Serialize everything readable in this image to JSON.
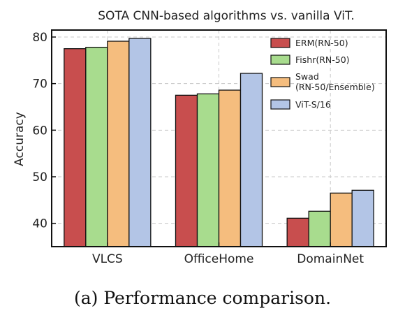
{
  "chart_data": {
    "type": "bar",
    "title": "SOTA CNN-based algorithms vs. vanilla ViT.",
    "xlabel": "",
    "ylabel": "Accuracy",
    "ylim": [
      35,
      81.5
    ],
    "yticks": [
      "40",
      "50",
      "60",
      "70",
      "80"
    ],
    "categories": [
      "VLCS",
      "OfficeHome",
      "DomainNet"
    ],
    "grid": true,
    "legend_position": "top-right",
    "series": [
      {
        "name": "ERM(RN-50)",
        "values": [
          77.5,
          67.5,
          41.1
        ],
        "color": "#c84e4e"
      },
      {
        "name": "Fishr(RN-50)",
        "values": [
          77.8,
          67.8,
          42.6
        ],
        "color": "#a8dc8e"
      },
      {
        "name": "Swad (RN-50/Ensemble)",
        "legend_lines": [
          "Swad",
          "(RN-50/Ensemble)"
        ],
        "values": [
          79.1,
          68.6,
          46.5
        ],
        "color": "#f5bd7e"
      },
      {
        "name": "ViT-S/16",
        "values": [
          79.7,
          72.2,
          47.1
        ],
        "color": "#b3c5e6"
      }
    ]
  },
  "caption": {
    "label": "(a)",
    "text": "Performance comparison."
  }
}
